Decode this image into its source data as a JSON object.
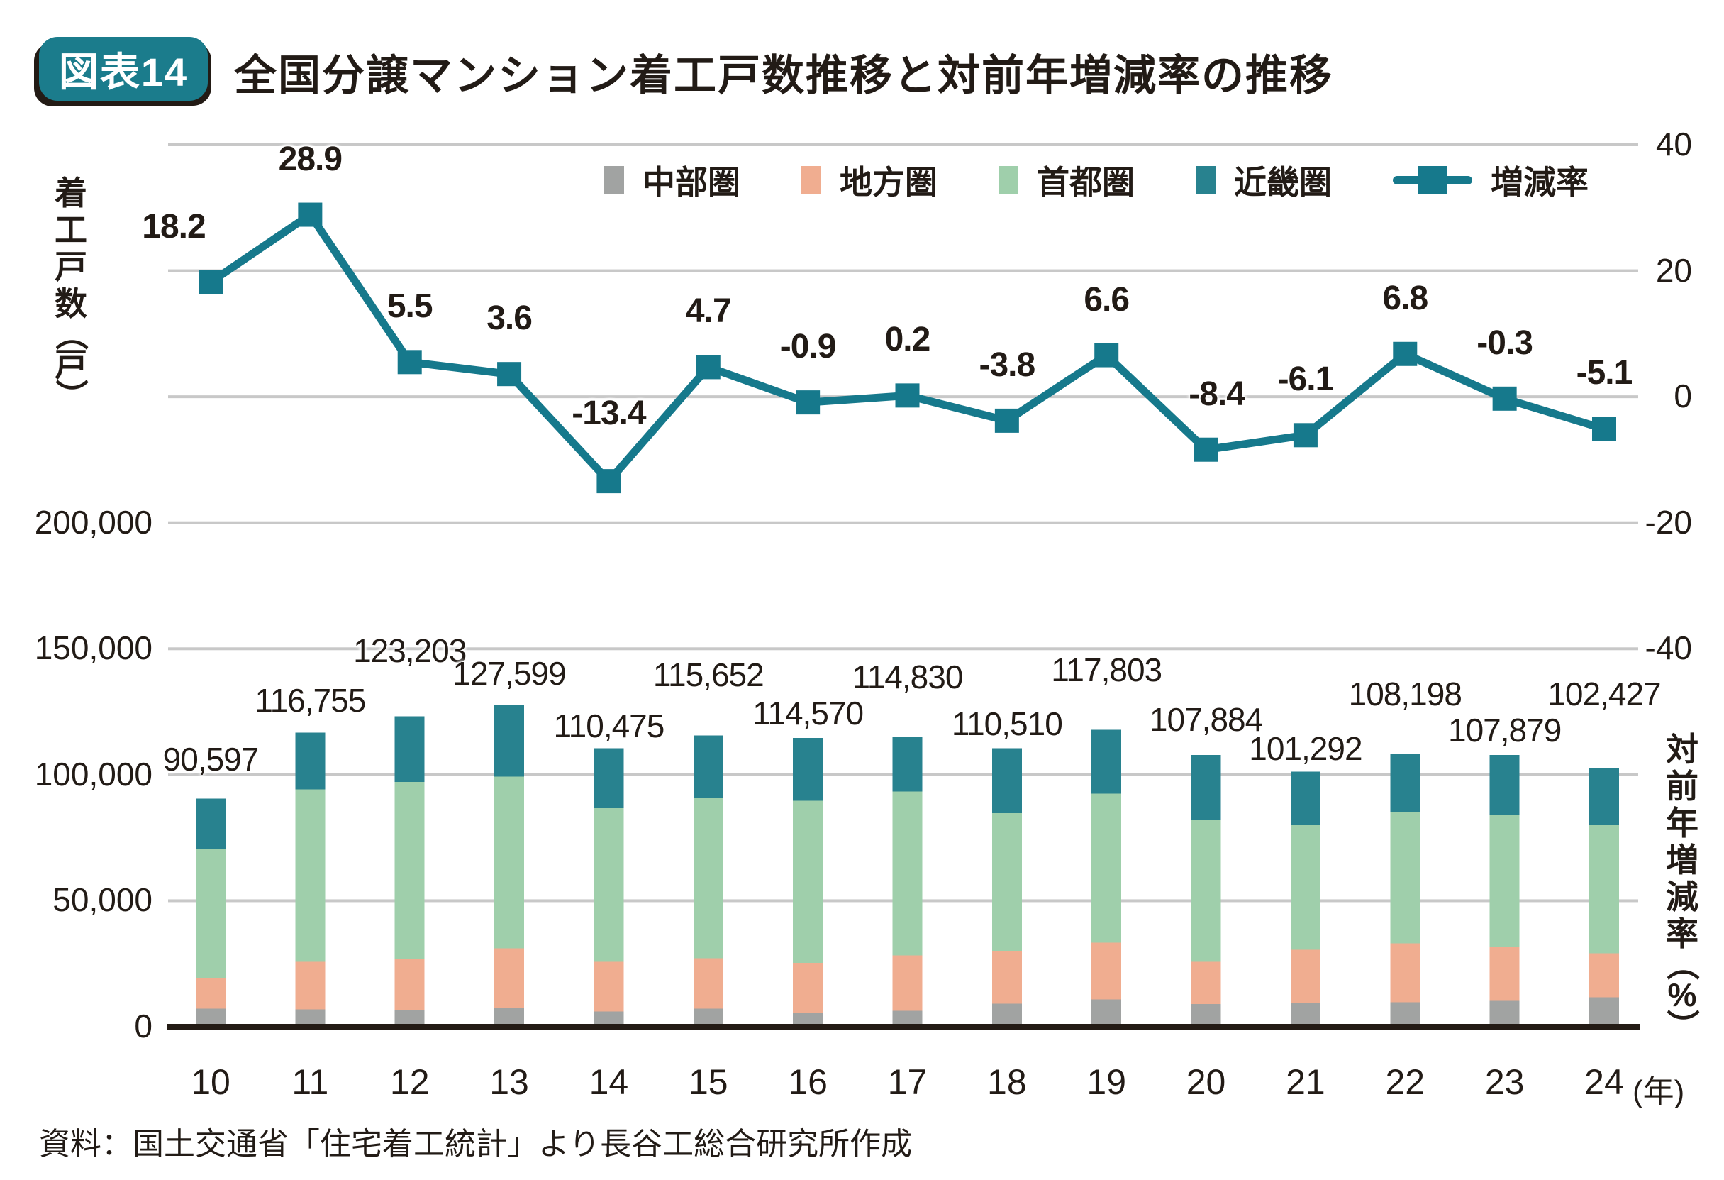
{
  "figure": {
    "badge": "図表14",
    "title": "全国分譲マンション着工戸数推移と対前年増減率の推移",
    "source": "資料：国土交通省「住宅着工統計」より長谷工総合研究所作成"
  },
  "colors": {
    "badge": "#1b7c8c",
    "line": "#16798c",
    "grid": "#c8c8c8",
    "axis": "#231b15",
    "text": "#221b16",
    "bar_chubu": "#a1a3a2",
    "bar_chihou": "#f0ad90",
    "bar_shuto": "#9fcfab",
    "bar_kinki": "#28828f"
  },
  "legend": {
    "items": [
      {
        "label": "中部圏",
        "color": "#a1a3a2",
        "type": "square"
      },
      {
        "label": "地方圏",
        "color": "#f0ad90",
        "type": "square"
      },
      {
        "label": "首都圏",
        "color": "#9fcfab",
        "type": "square"
      },
      {
        "label": "近畿圏",
        "color": "#28828f",
        "type": "square"
      },
      {
        "label": "増減率",
        "color": "#16798c",
        "type": "line-marker"
      }
    ]
  },
  "left_axis": {
    "title": "着工戸数（戸）",
    "title_chars": [
      "着",
      "工",
      "戸",
      "数",
      "（",
      "戸",
      "）"
    ],
    "ticks": [
      "200,000",
      "150,000",
      "100,000",
      "50,000",
      "0"
    ],
    "max": 200000,
    "min": 0
  },
  "right_axis": {
    "title": "対前年増減率（%）",
    "title_chars": [
      "対",
      "前",
      "年",
      "増",
      "減",
      "率",
      "（",
      "%",
      "）"
    ],
    "ticks": [
      "40",
      "20",
      "0",
      "-20",
      "-40"
    ],
    "max": 40,
    "min": -40
  },
  "x_axis": {
    "years": [
      "10",
      "11",
      "12",
      "13",
      "14",
      "15",
      "16",
      "17",
      "18",
      "19",
      "20",
      "21",
      "22",
      "23",
      "24"
    ],
    "suffix": "(年)"
  },
  "chart_data": [
    {
      "type": "line",
      "name": "増減率",
      "axis": "right",
      "ylim": [
        -40,
        40
      ],
      "marker": "square",
      "color": "#16798c",
      "x": [
        10,
        11,
        12,
        13,
        14,
        15,
        16,
        17,
        18,
        19,
        20,
        21,
        22,
        23,
        24
      ],
      "values": [
        18.2,
        28.9,
        5.5,
        3.6,
        -13.4,
        4.7,
        -0.9,
        0.2,
        -3.8,
        6.6,
        -8.4,
        -6.1,
        6.8,
        -0.3,
        -5.1
      ]
    },
    {
      "type": "bar",
      "stacked": true,
      "axis": "left",
      "ylim": [
        0,
        200000
      ],
      "categories": [
        10,
        11,
        12,
        13,
        14,
        15,
        16,
        17,
        18,
        19,
        20,
        21,
        22,
        23,
        24
      ],
      "series": [
        {
          "name": "中部圏",
          "key": "chubu",
          "color": "#a1a3a2",
          "values": [
            7200,
            6900,
            6700,
            7500,
            6100,
            7200,
            5600,
            6400,
            9200,
            10800,
            9000,
            9400,
            9700,
            10300,
            11700
          ]
        },
        {
          "name": "地方圏",
          "key": "chihou",
          "color": "#f0ad90",
          "values": [
            12200,
            18900,
            20000,
            23600,
            19700,
            20000,
            19700,
            21900,
            20900,
            22500,
            16800,
            21200,
            23400,
            21400,
            17500
          ]
        },
        {
          "name": "首都圏",
          "key": "shuto",
          "color": "#9fcfab",
          "values": [
            51200,
            68400,
            70500,
            68100,
            60900,
            63600,
            64400,
            65000,
            54700,
            59200,
            56200,
            49700,
            51900,
            52500,
            51100
          ]
        },
        {
          "name": "近畿圏",
          "key": "kinki",
          "color": "#28828f",
          "values": [
            19997,
            22555,
            26003,
            28399,
            23775,
            24852,
            24870,
            21530,
            25710,
            25303,
            25884,
            20992,
            23198,
            23679,
            22127
          ]
        }
      ],
      "totals": [
        90597,
        116755,
        123203,
        127599,
        110475,
        115652,
        114570,
        114830,
        110510,
        117803,
        107884,
        101292,
        108198,
        107879,
        102427
      ]
    }
  ]
}
